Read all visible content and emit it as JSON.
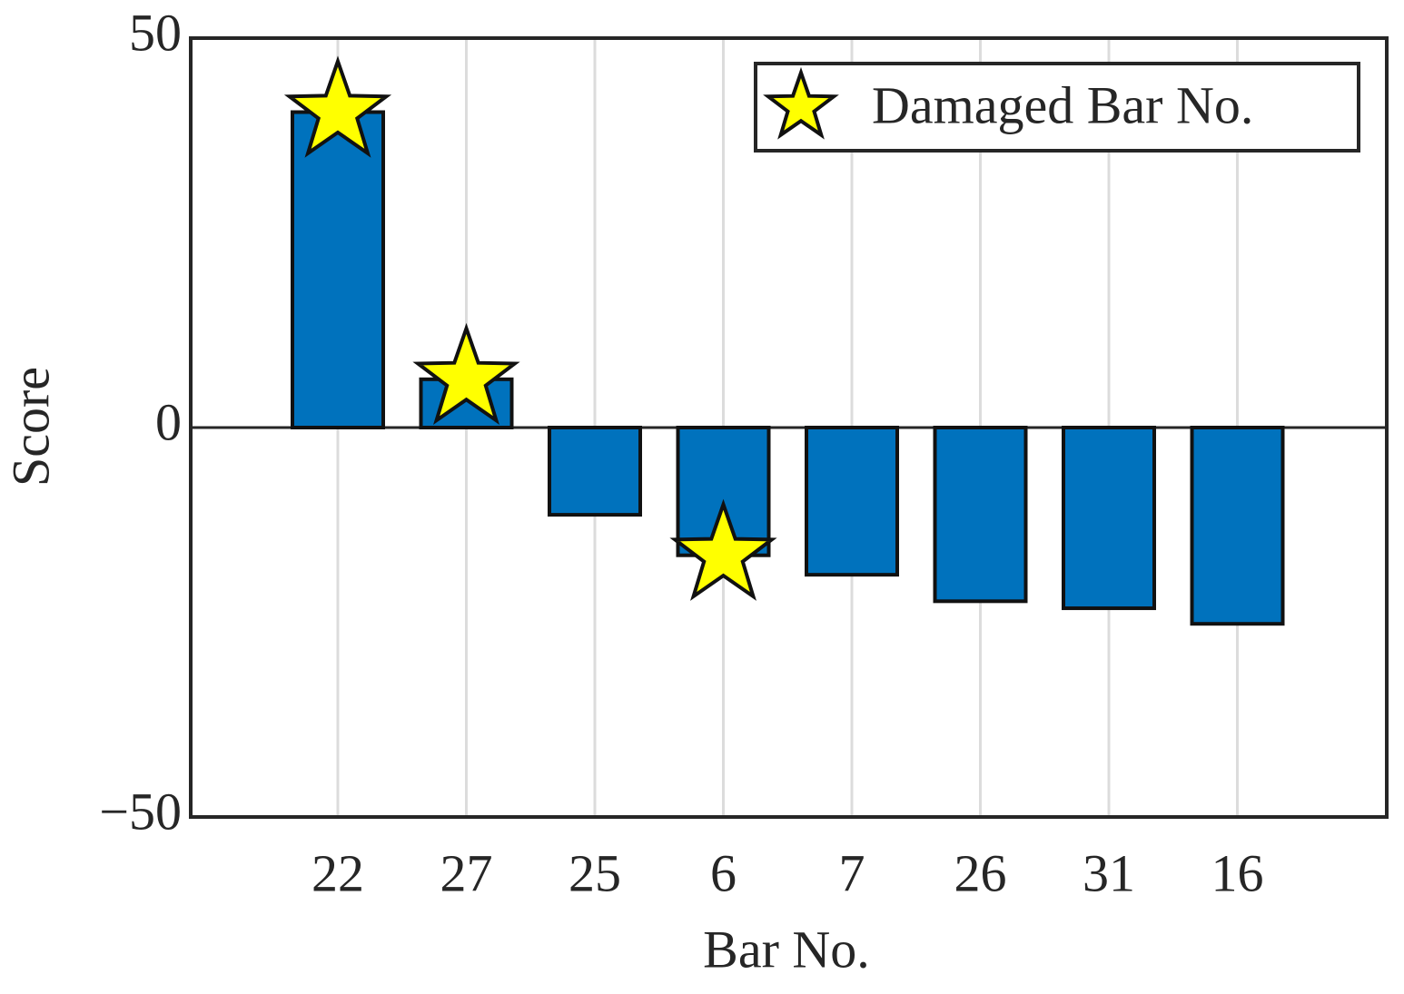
{
  "chart_data": {
    "type": "bar",
    "x_label": "Bar No.",
    "y_label": "Score",
    "categories": [
      "22",
      "27",
      "25",
      "6",
      "7",
      "26",
      "31",
      "16"
    ],
    "series": [
      {
        "name": "Score",
        "color": "#0072bd",
        "values": [
          40.5,
          6.2,
          -11.2,
          -16.4,
          -18.9,
          -22.3,
          -23.2,
          -25.2
        ]
      },
      {
        "name": "Damaged Bar No.",
        "color": "#ffff00",
        "marker": "star",
        "values": [
          40.5,
          6.2,
          null,
          -16.4,
          null,
          null,
          null,
          null
        ]
      }
    ],
    "ylim": [
      -50,
      50
    ],
    "yticks": [
      {
        "value": -50,
        "label": "−50"
      },
      0,
      50
    ],
    "grid": true,
    "legend": "upper right"
  }
}
